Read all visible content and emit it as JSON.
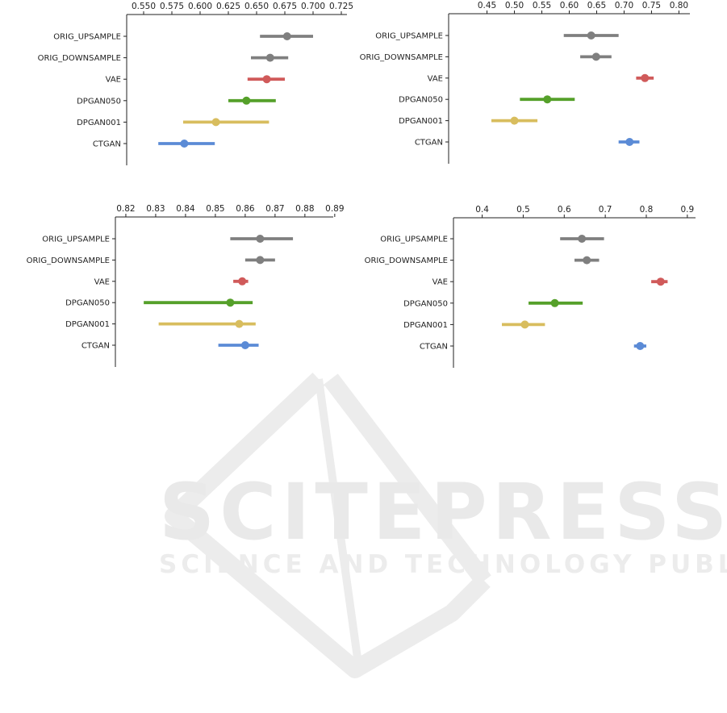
{
  "watermark": {
    "title": "SCITEPRESS",
    "subtitle": "SCIENCE AND TECHNOLOGY PUBLICATIONS"
  },
  "colors": {
    "gray": "#7f7f7f",
    "red": "#d05a5a",
    "green": "#55a02a",
    "yellow": "#d8bd5e",
    "blue": "#5b8bd6"
  },
  "chart_data": [
    {
      "type": "scatter",
      "title": "",
      "xlabel": "",
      "ylabel": "",
      "xlim": [
        0.535,
        0.73
      ],
      "xticks": [
        "0.550",
        "0.575",
        "0.600",
        "0.625",
        "0.650",
        "0.675",
        "0.700",
        "0.725"
      ],
      "categories": [
        "ORIG_UPSAMPLE",
        "ORIG_DOWNSAMPLE",
        "VAE",
        "DPGAN050",
        "DPGAN001",
        "CTGAN"
      ],
      "point_colors": [
        "gray",
        "gray",
        "red",
        "green",
        "yellow",
        "blue"
      ],
      "values": [
        0.677,
        0.662,
        0.659,
        0.641,
        0.614,
        0.586
      ],
      "ci_low": [
        0.653,
        0.645,
        0.642,
        0.625,
        0.585,
        0.563
      ],
      "ci_high": [
        0.7,
        0.678,
        0.675,
        0.667,
        0.661,
        0.613
      ]
    },
    {
      "type": "scatter",
      "title": "",
      "xlabel": "",
      "ylabel": "",
      "xlim": [
        0.38,
        0.82
      ],
      "xticks": [
        "0.45",
        "0.50",
        "0.55",
        "0.60",
        "0.65",
        "0.70",
        "0.75",
        "0.80"
      ],
      "categories": [
        "ORIG_UPSAMPLE",
        "ORIG_DOWNSAMPLE",
        "VAE",
        "DPGAN050",
        "DPGAN001",
        "CTGAN"
      ],
      "point_colors": [
        "gray",
        "gray",
        "red",
        "green",
        "yellow",
        "blue"
      ],
      "values": [
        0.64,
        0.649,
        0.738,
        0.56,
        0.5,
        0.71
      ],
      "ci_low": [
        0.59,
        0.62,
        0.722,
        0.51,
        0.458,
        0.69
      ],
      "ci_high": [
        0.69,
        0.677,
        0.754,
        0.61,
        0.542,
        0.728
      ]
    },
    {
      "type": "scatter",
      "title": "",
      "xlabel": "",
      "ylabel": "",
      "xlim": [
        0.8165,
        0.8895
      ],
      "xticks": [
        "0.82",
        "0.83",
        "0.84",
        "0.85",
        "0.86",
        "0.87",
        "0.88",
        "0.89"
      ],
      "categories": [
        "ORIG_UPSAMPLE",
        "ORIG_DOWNSAMPLE",
        "VAE",
        "DPGAN050",
        "DPGAN001",
        "CTGAN"
      ],
      "point_colors": [
        "gray",
        "gray",
        "red",
        "green",
        "yellow",
        "blue"
      ],
      "values": [
        0.865,
        0.865,
        0.859,
        0.855,
        0.858,
        0.86
      ],
      "ci_low": [
        0.855,
        0.86,
        0.856,
        0.826,
        0.831,
        0.851
      ],
      "ci_high": [
        0.876,
        0.87,
        0.861,
        0.8625,
        0.8635,
        0.8645
      ]
    },
    {
      "type": "scatter",
      "title": "",
      "xlabel": "",
      "ylabel": "",
      "xlim": [
        0.33,
        0.92
      ],
      "xticks": [
        "0.4",
        "0.5",
        "0.6",
        "0.7",
        "0.8",
        "0.9"
      ],
      "categories": [
        "ORIG_UPSAMPLE",
        "ORIG_DOWNSAMPLE",
        "VAE",
        "DPGAN050",
        "DPGAN001",
        "CTGAN"
      ],
      "point_colors": [
        "gray",
        "gray",
        "red",
        "green",
        "yellow",
        "blue"
      ],
      "values": [
        0.643,
        0.655,
        0.835,
        0.577,
        0.504,
        0.785
      ],
      "ci_low": [
        0.59,
        0.625,
        0.812,
        0.513,
        0.448,
        0.77
      ],
      "ci_high": [
        0.697,
        0.685,
        0.852,
        0.645,
        0.553,
        0.8
      ]
    }
  ]
}
